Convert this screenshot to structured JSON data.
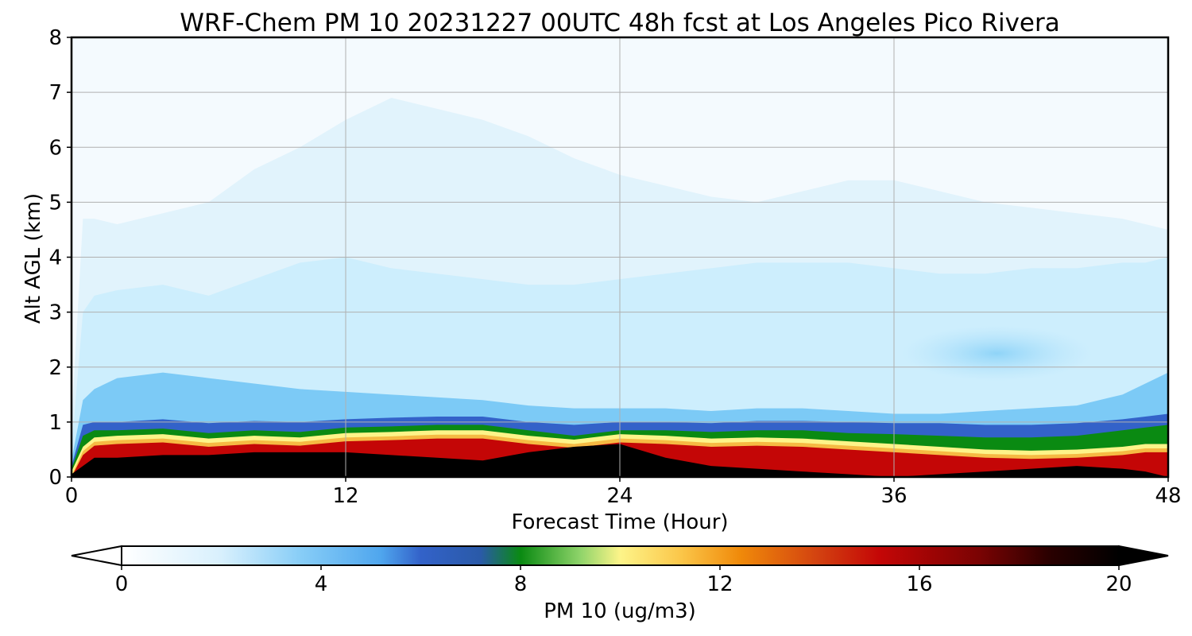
{
  "chart_data": {
    "type": "heatmap",
    "title": "WRF-Chem PM 10  20231227 00UTC 48h fcst at Los Angeles Pico Rivera",
    "xlabel": "Forecast Time (Hour)",
    "ylabel": "Alt AGL (km)",
    "xlim": [
      0,
      48
    ],
    "ylim": [
      0,
      8
    ],
    "xticks": [
      0,
      12,
      24,
      36,
      48
    ],
    "yticks": [
      0,
      1,
      2,
      3,
      4,
      5,
      6,
      7,
      8
    ],
    "grid": true,
    "colorbar": {
      "label": "PM 10  (ug/m3)",
      "range": [
        0,
        20
      ],
      "ticks": [
        0,
        4,
        8,
        12,
        16,
        20
      ],
      "extend": "both",
      "orientation": "horizontal",
      "placement": "bottom"
    },
    "x_hours": [
      0,
      0.5,
      1,
      2,
      4,
      6,
      8,
      10,
      12,
      14,
      16,
      18,
      20,
      22,
      24,
      26,
      28,
      30,
      32,
      34,
      36,
      38,
      40,
      42,
      44,
      46,
      47,
      48
    ],
    "boundary_layer": {
      "black_top_km": [
        0.05,
        0.2,
        0.35,
        0.35,
        0.4,
        0.4,
        0.45,
        0.45,
        0.45,
        0.4,
        0.35,
        0.3,
        0.45,
        0.55,
        0.6,
        0.35,
        0.2,
        0.15,
        0.1,
        0.05,
        0.0,
        0.05,
        0.1,
        0.15,
        0.2,
        0.15,
        0.1,
        0.0
      ],
      "red_top_km": [
        0.1,
        0.55,
        0.72,
        0.75,
        0.78,
        0.7,
        0.75,
        0.72,
        0.8,
        0.82,
        0.85,
        0.85,
        0.75,
        0.68,
        0.78,
        0.75,
        0.7,
        0.72,
        0.7,
        0.65,
        0.6,
        0.55,
        0.5,
        0.48,
        0.5,
        0.55,
        0.6,
        0.6
      ],
      "peak_top_km": [
        0.15,
        0.75,
        0.85,
        0.85,
        0.88,
        0.8,
        0.85,
        0.82,
        0.9,
        0.92,
        0.95,
        0.95,
        0.85,
        0.75,
        0.85,
        0.85,
        0.82,
        0.85,
        0.85,
        0.8,
        0.78,
        0.75,
        0.72,
        0.72,
        0.75,
        0.85,
        0.9,
        0.95
      ],
      "green_top_km": [
        0.2,
        0.95,
        1.0,
        1.0,
        1.05,
        0.98,
        1.02,
        1.0,
        1.05,
        1.08,
        1.1,
        1.1,
        1.0,
        0.95,
        1.0,
        1.0,
        0.98,
        1.02,
        1.02,
        1.0,
        0.98,
        0.98,
        0.95,
        0.95,
        0.98,
        1.05,
        1.1,
        1.15
      ],
      "blue_top_km": [
        0.3,
        1.4,
        1.6,
        1.8,
        1.9,
        1.8,
        1.7,
        1.6,
        1.55,
        1.5,
        1.45,
        1.4,
        1.3,
        1.25,
        1.25,
        1.25,
        1.2,
        1.25,
        1.25,
        1.2,
        1.15,
        1.15,
        1.2,
        1.25,
        1.3,
        1.5,
        1.7,
        1.9
      ],
      "lightblue_top_km": [
        0.5,
        3.0,
        3.3,
        3.4,
        3.5,
        3.3,
        3.6,
        3.9,
        4.0,
        3.8,
        3.7,
        3.6,
        3.5,
        3.5,
        3.6,
        3.7,
        3.8,
        3.9,
        3.9,
        3.9,
        3.8,
        3.7,
        3.7,
        3.8,
        3.8,
        3.9,
        3.9,
        4.0
      ],
      "paleblue_top_km": [
        1.0,
        4.7,
        4.7,
        4.6,
        4.8,
        5.0,
        5.6,
        6.0,
        6.5,
        6.9,
        6.7,
        6.5,
        6.2,
        5.8,
        5.5,
        5.3,
        5.1,
        5.0,
        5.2,
        5.4,
        5.4,
        5.2,
        5.0,
        4.9,
        4.8,
        4.7,
        4.6,
        4.5
      ]
    },
    "colors": {
      "background_top": "#f4fafe",
      "paleblue": "#e1f3fc",
      "lightblue": "#cdeefd",
      "midblue": "#7ccaf6",
      "deepblue": "#3362c9",
      "green": "#0a8a12",
      "yellow": "#fdf489",
      "orange": "#f08a0a",
      "red": "#c40606",
      "black": "#000000"
    }
  }
}
